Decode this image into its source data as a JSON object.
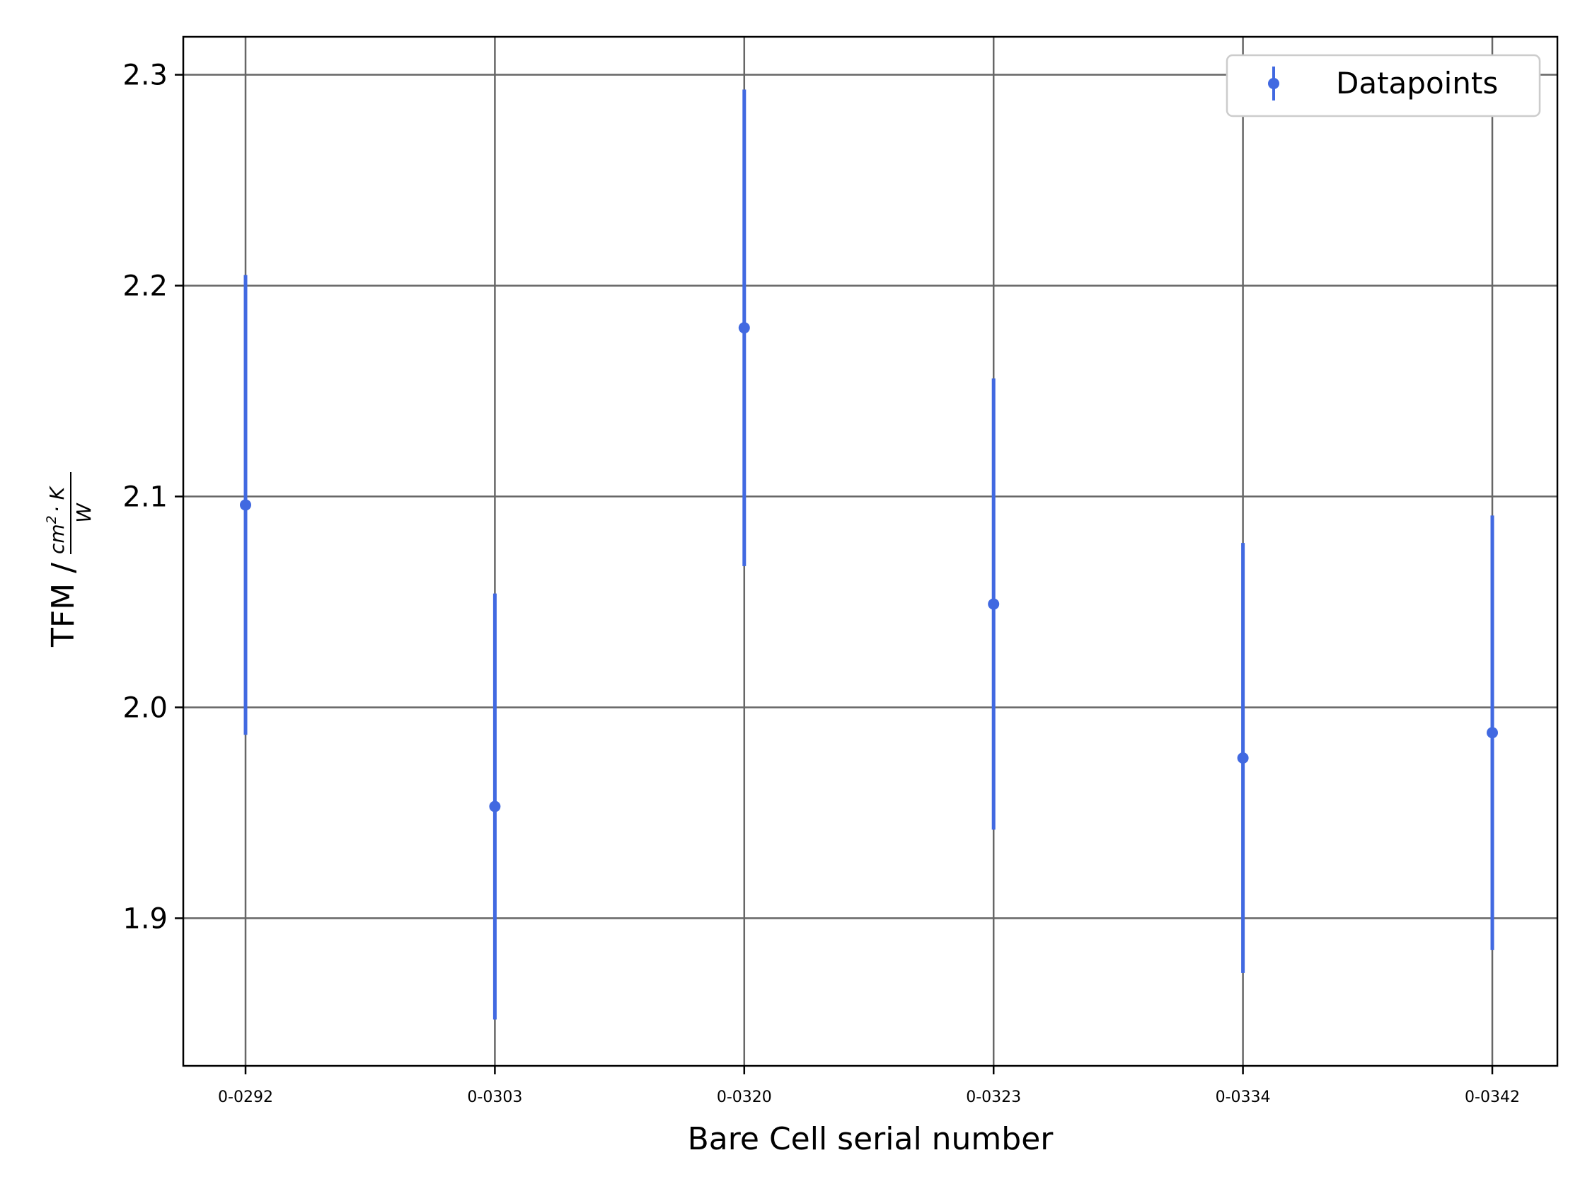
{
  "chart_data": {
    "type": "scatter",
    "title": "",
    "xlabel": "Bare Cell serial number",
    "ylabel": {
      "prefix": "TFM / ",
      "numerator_base": "cm",
      "numerator_exponent": "2",
      "numerator_rest": "· K",
      "denominator": "W"
    },
    "categories": [
      "0-0292",
      "0-0303",
      "0-0320",
      "0-0323",
      "0-0334",
      "0-0342"
    ],
    "series": [
      {
        "name": "Datapoints",
        "values": [
          2.096,
          1.953,
          2.18,
          2.049,
          1.976,
          1.988
        ],
        "errors": [
          0.109,
          0.101,
          0.113,
          0.107,
          0.102,
          0.103
        ],
        "color": "#4169e1"
      }
    ],
    "ylim": [
      1.83,
      2.318
    ],
    "yticks": [
      "1.9",
      "2.0",
      "2.1",
      "2.2",
      "2.3"
    ],
    "grid": true,
    "grid_color": "#666666",
    "legend_position": "top-right"
  }
}
